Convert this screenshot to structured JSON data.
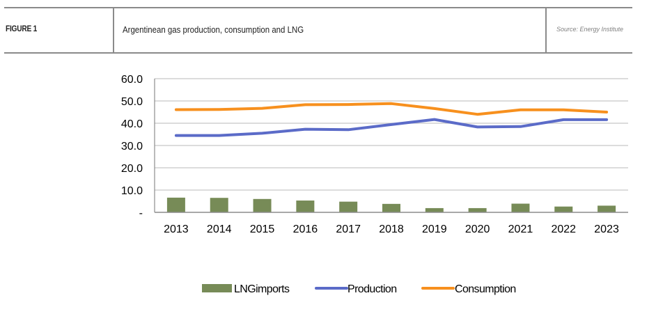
{
  "header": {
    "figure_label": "FIGURE 1",
    "title": "Argentinean gas production, consumption and LNG",
    "source": "Source: Energy Institute"
  },
  "colors": {
    "lng": "#778b57",
    "production": "#5b6bc8",
    "consumption": "#f7901e",
    "grid": "#c8c8c8",
    "axis": "#8c8c8c"
  },
  "chart_data": {
    "type": "bar+line",
    "title": "Argentinean gas production, consumption and LNG",
    "xlabel": "",
    "ylabel": "",
    "ylim": [
      0,
      60
    ],
    "yticks": [
      0,
      10,
      20,
      30,
      40,
      50,
      60
    ],
    "ytick_labels": [
      "-",
      "10.0",
      "20.0",
      "30.0",
      "40.0",
      "50.0",
      "60.0"
    ],
    "grid": true,
    "legend_position": "bottom",
    "categories": [
      "2013",
      "2014",
      "2015",
      "2016",
      "2017",
      "2018",
      "2019",
      "2020",
      "2021",
      "2022",
      "2023"
    ],
    "series": [
      {
        "name": "LNGimports",
        "type": "bar",
        "color": "#778b57",
        "values": [
          6.6,
          6.5,
          6.0,
          5.3,
          4.8,
          3.8,
          1.9,
          1.9,
          3.9,
          2.6,
          3.0
        ]
      },
      {
        "name": "Production",
        "type": "line",
        "color": "#5b6bc8",
        "values": [
          34.5,
          34.5,
          35.5,
          37.3,
          37.1,
          39.4,
          41.7,
          38.3,
          38.5,
          41.6,
          41.6
        ]
      },
      {
        "name": "Consumption",
        "type": "line",
        "color": "#f7901e",
        "values": [
          46.1,
          46.2,
          46.7,
          48.3,
          48.4,
          48.8,
          46.6,
          44.0,
          46.0,
          46.0,
          45.0
        ]
      }
    ]
  }
}
